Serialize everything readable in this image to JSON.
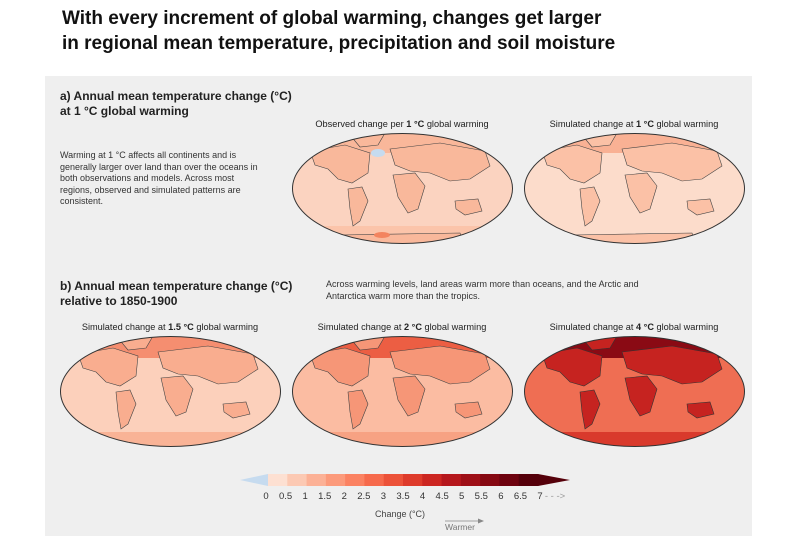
{
  "title": "With every increment of global warming, changes get larger\nin regional mean temperature, precipitation and soil moisture",
  "section_a": {
    "title": "a) Annual mean temperature change (°C)\nat 1 °C global warming",
    "description": "Warming at 1 °C affects all continents and is generally larger over land than over the oceans in both observations and models. Across most regions, observed and simulated patterns are consistent.",
    "maps": [
      {
        "caption_pre": "Observed change per ",
        "caption_bold": "1 °C",
        "caption_post": " global warming"
      },
      {
        "caption_pre": "Simulated change at ",
        "caption_bold": "1 °C",
        "caption_post": " global warming"
      }
    ]
  },
  "section_b": {
    "title": "b) Annual mean temperature change (°C)\nrelative to 1850-1900",
    "description": "Across warming levels, land areas warm more than oceans, and the Arctic and Antarctica warm more than the tropics.",
    "maps": [
      {
        "caption_pre": "Simulated change at ",
        "caption_bold": "1.5 °C",
        "caption_post": " global warming"
      },
      {
        "caption_pre": "Simulated change at ",
        "caption_bold": "2 °C",
        "caption_post": " global warming"
      },
      {
        "caption_pre": "Simulated change at ",
        "caption_bold": "4 °C",
        "caption_post": " global warming"
      }
    ]
  },
  "colorbar": {
    "ticks": [
      "0",
      "0.5",
      "1",
      "1.5",
      "2",
      "2.5",
      "3",
      "3.5",
      "4",
      "4.5",
      "5",
      "5.5",
      "6",
      "6.5",
      "7"
    ],
    "overflow": "- - ->",
    "label": "Change (°C)",
    "direction_label": "Warmer",
    "colors": [
      "#c6dbef",
      "#fde0d2",
      "#fcc9b3",
      "#fcb196",
      "#fc9a7b",
      "#fb8262",
      "#f66a4c",
      "#ec5239",
      "#de3b2b",
      "#cc2621",
      "#b5171c",
      "#9e0f17",
      "#860812",
      "#6d020e",
      "#55000a"
    ]
  }
}
